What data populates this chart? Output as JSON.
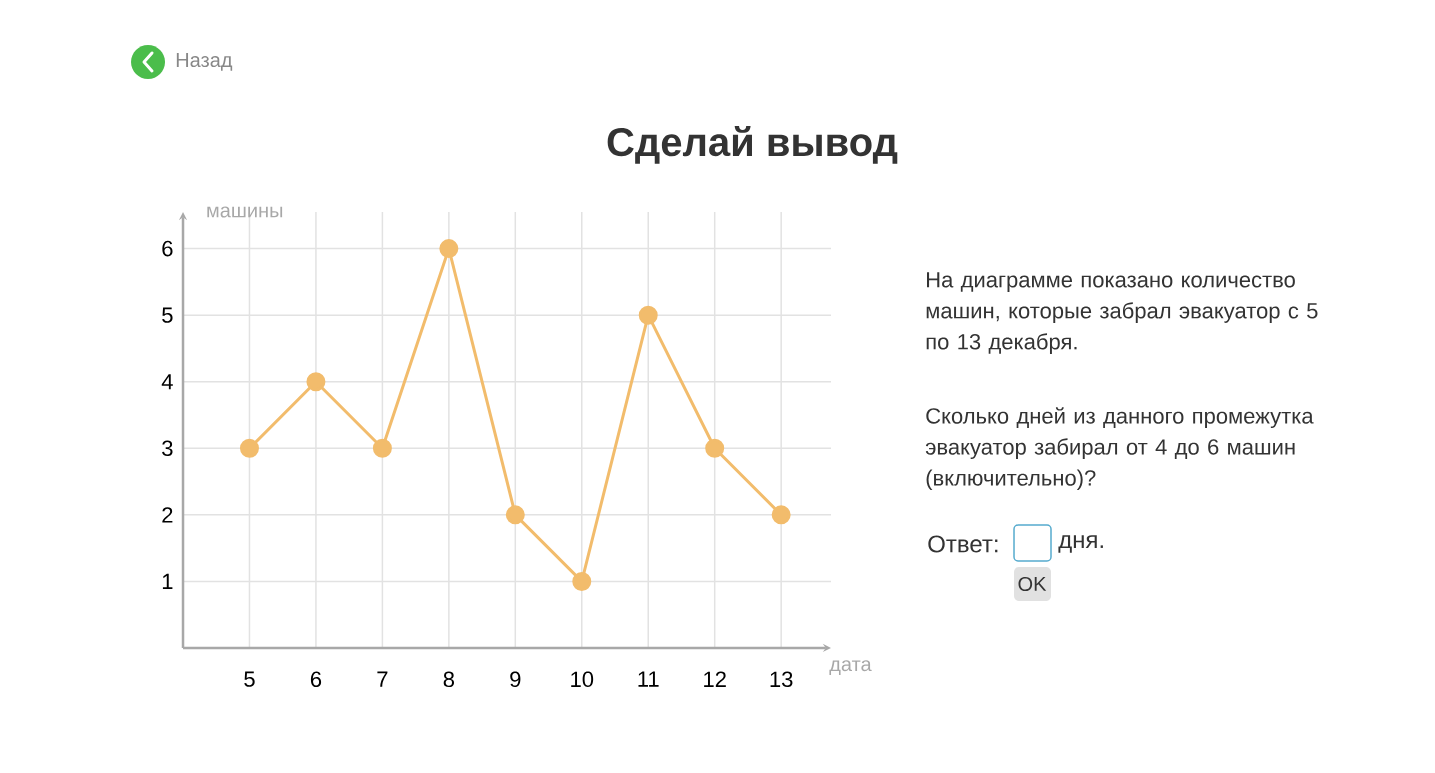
{
  "chart_data": {
    "type": "line",
    "title": "Сделай вывод",
    "xlabel": "дата",
    "ylabel": "машины",
    "x": [
      5,
      6,
      7,
      8,
      9,
      10,
      11,
      12,
      13
    ],
    "values": [
      3,
      4,
      3,
      6,
      2,
      1,
      5,
      3,
      2
    ],
    "color": "#f2bc6c",
    "marker": "circle",
    "line_style": "solid",
    "grid": true,
    "xlim": [
      4,
      13.75
    ],
    "ylim": [
      0,
      6.55
    ],
    "xticks": [
      5,
      6,
      7,
      8,
      9,
      10,
      11,
      12,
      13
    ],
    "yticks": [
      1,
      2,
      3,
      4,
      5,
      6
    ],
    "annotations": [
      "Назад",
      "На диаграмме показано количество машин, которые забрал эвакуатор с 5 по 13 декабря.",
      "Сколько дней из данного промежутка эвакуатор забирал от 4 до 6 машин (включительно)?",
      "Ответ:",
      "дня.",
      "OK"
    ]
  }
}
